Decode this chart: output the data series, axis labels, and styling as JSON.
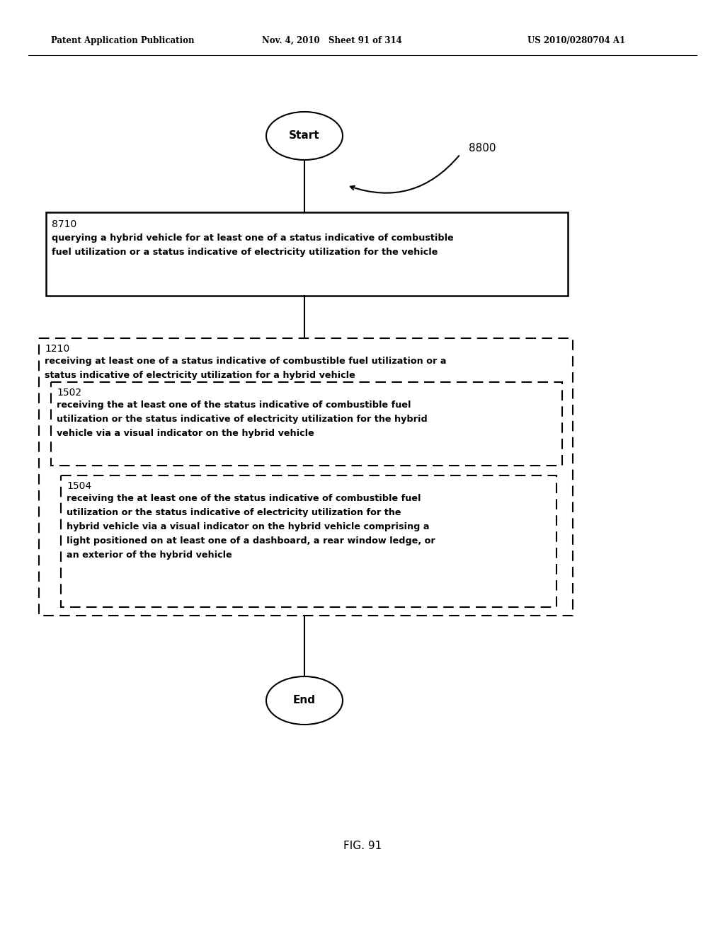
{
  "header_left": "Patent Application Publication",
  "header_mid": "Nov. 4, 2010   Sheet 91 of 314",
  "header_right": "US 2010/0280704 A1",
  "fig_label": "FIG. 91",
  "flow_label": "8800",
  "start_label": "Start",
  "end_label": "End",
  "box8710_id": "8710",
  "box8710_line1": "querying a hybrid vehicle for at least one of a status indicative of combustible",
  "box8710_line2": "fuel utilization or a status indicative of electricity utilization for the vehicle",
  "box1210_id": "1210",
  "box1210_line1": "receiving at least one of a status indicative of combustible fuel utilization or a",
  "box1210_line2": "status indicative of electricity utilization for a hybrid vehicle",
  "box1502_id": "1502",
  "box1502_line1": "receiving the at least one of the status indicative of combustible fuel",
  "box1502_line2": "utilization or the status indicative of electricity utilization for the hybrid",
  "box1502_line3": "vehicle via a visual indicator on the hybrid vehicle",
  "box1504_id": "1504",
  "box1504_line1": "receiving the at least one of the status indicative of combustible fuel",
  "box1504_line2": "utilization or the status indicative of electricity utilization for the",
  "box1504_line3": "hybrid vehicle via a visual indicator on the hybrid vehicle comprising a",
  "box1504_line4": "light positioned on at least one of a dashboard, a rear window ledge, or",
  "box1504_line5": "an exterior of the hybrid vehicle",
  "bg_color": "#ffffff",
  "text_color": "#000000"
}
